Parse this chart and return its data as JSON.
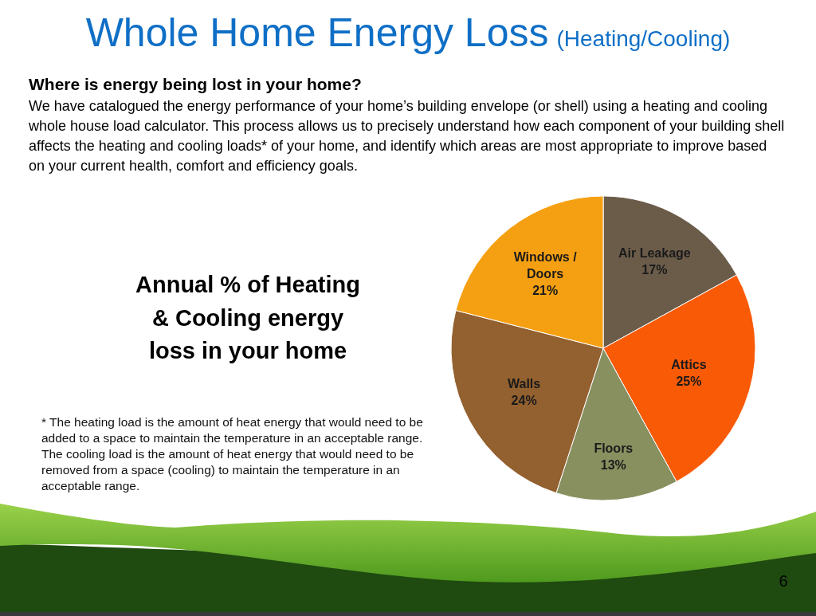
{
  "chart_data": {
    "type": "pie",
    "title": "Whole Home Energy Loss",
    "subtitle": "(Heating/Cooling)",
    "categories": [
      "Air Leakage",
      "Attics",
      "Floors",
      "Walls",
      "Windows / Doors"
    ],
    "values": [
      17,
      25,
      13,
      24,
      21
    ],
    "value_labels": [
      "17%",
      "25%",
      "13%",
      "24%",
      "21%"
    ],
    "colors": [
      "#6b5c4a",
      "#f95a06",
      "#889060",
      "#93602f",
      "#f5a012"
    ],
    "legend": false,
    "annotations": [
      "Where is energy being lost in your home?",
      "We have catalogued the energy performance of your home’s building envelope (or shell) using a heating and cooling whole house load calculator.  This process allows us to precisely understand how each component of your building shell affects the heating and cooling loads* of your home, and identify which areas are most appropriate to improve based on your current health, comfort and efficiency goals.",
      "Annual % of Heating & Cooling energy loss in your home",
      "* The heating load is the amount of heat energy that would need to be added to a space to maintain the temperature in an acceptable range. The cooling load is the amount of heat energy that would need to be removed from a space (cooling) to maintain the temperature in an acceptable range.",
      "6"
    ]
  }
}
